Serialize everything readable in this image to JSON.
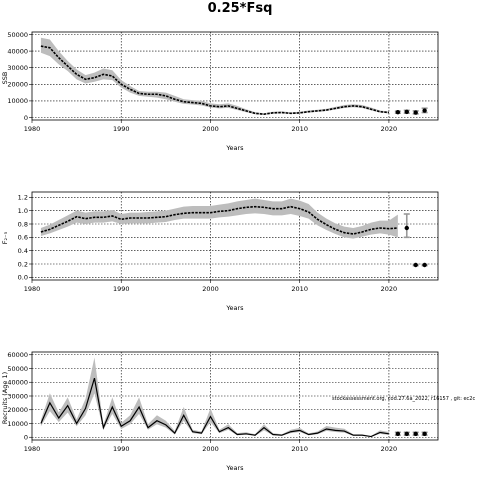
{
  "title": "0.25*Fsq",
  "annotation": "stockassessment.org, cod.27.6a_2022, r16157 , git: ec2c",
  "chart_data": [
    {
      "type": "line",
      "title": "",
      "xlabel": "Years",
      "ylabel": "SSB",
      "xlim": [
        1980,
        2025.5
      ],
      "ylim": [
        -1500,
        51500
      ],
      "xticks": [
        1980,
        1990,
        2000,
        2010,
        2020
      ],
      "yticks": [
        0,
        10000,
        20000,
        30000,
        40000,
        50000
      ],
      "grid": true,
      "x": [
        1981,
        1982,
        1983,
        1984,
        1985,
        1986,
        1987,
        1988,
        1989,
        1990,
        1991,
        1992,
        1993,
        1994,
        1995,
        1996,
        1997,
        1998,
        1999,
        2000,
        2001,
        2002,
        2003,
        2004,
        2005,
        2006,
        2007,
        2008,
        2009,
        2010,
        2011,
        2012,
        2013,
        2014,
        2015,
        2016,
        2017,
        2018,
        2019,
        2020
      ],
      "series": [
        {
          "values": [
            43000,
            42000,
            36000,
            31000,
            26000,
            23000,
            24000,
            26000,
            25000,
            20000,
            17000,
            14500,
            14000,
            14000,
            13000,
            11000,
            9500,
            9000,
            8500,
            7000,
            6500,
            7000,
            5500,
            4000,
            2500,
            2000,
            2800,
            3000,
            2500,
            2800,
            3500,
            4000,
            4500,
            5500,
            6500,
            7000,
            6500,
            5000,
            3500,
            3000
          ],
          "lower": [
            39000,
            37000,
            32000,
            28000,
            23000,
            20500,
            21500,
            23000,
            22500,
            18000,
            15000,
            13000,
            12500,
            12000,
            11000,
            9500,
            8200,
            7800,
            7200,
            6000,
            5500,
            5800,
            4500,
            3200,
            2000,
            1600,
            2300,
            2500,
            2100,
            2300,
            3000,
            3400,
            3900,
            4800,
            5700,
            6200,
            5700,
            4300,
            3000,
            2500
          ],
          "upper": [
            48000,
            47000,
            40000,
            34000,
            29000,
            25500,
            27000,
            29500,
            28500,
            22500,
            19000,
            16000,
            15500,
            15500,
            15000,
            13000,
            11000,
            10500,
            10000,
            8500,
            8000,
            8500,
            7000,
            5000,
            3200,
            2600,
            3500,
            3700,
            3100,
            3500,
            4200,
            4700,
            5300,
            6400,
            7500,
            8000,
            7500,
            6000,
            4200,
            3600
          ],
          "style": "dashed"
        }
      ],
      "forecast": {
        "x": [
          2021,
          2022,
          2023,
          2024
        ],
        "values": [
          3200,
          3400,
          3000,
          4200
        ],
        "lower": [
          2600,
          2600,
          2200,
          3000
        ],
        "upper": [
          3800,
          4300,
          4000,
          5600
        ]
      }
    },
    {
      "type": "line",
      "title": "",
      "xlabel": "Years",
      "ylabel": "F₂₋₅",
      "xlim": [
        1980,
        2025.5
      ],
      "ylim": [
        -0.04,
        1.28
      ],
      "xticks": [
        1980,
        1990,
        2000,
        2010,
        2020
      ],
      "yticks": [
        0.0,
        0.2,
        0.4,
        0.6,
        0.8,
        1.0,
        1.2
      ],
      "yticklabels": [
        "0.0",
        "0.2",
        "0.4",
        "0.6",
        "0.8",
        "1.0",
        "1.2"
      ],
      "grid": true,
      "x": [
        1981,
        1982,
        1983,
        1984,
        1985,
        1986,
        1987,
        1988,
        1989,
        1990,
        1991,
        1992,
        1993,
        1994,
        1995,
        1996,
        1997,
        1998,
        1999,
        2000,
        2001,
        2002,
        2003,
        2004,
        2005,
        2006,
        2007,
        2008,
        2009,
        2010,
        2011,
        2012,
        2013,
        2014,
        2015,
        2016,
        2017,
        2018,
        2019,
        2020,
        2021
      ],
      "series": [
        {
          "values": [
            0.68,
            0.72,
            0.78,
            0.84,
            0.91,
            0.88,
            0.9,
            0.9,
            0.92,
            0.87,
            0.89,
            0.89,
            0.89,
            0.9,
            0.91,
            0.94,
            0.96,
            0.97,
            0.97,
            0.97,
            0.99,
            1.0,
            1.03,
            1.05,
            1.06,
            1.05,
            1.03,
            1.03,
            1.06,
            1.03,
            0.98,
            0.87,
            0.79,
            0.72,
            0.67,
            0.65,
            0.68,
            0.72,
            0.74,
            0.73,
            0.74
          ],
          "lower": [
            0.62,
            0.66,
            0.71,
            0.76,
            0.82,
            0.8,
            0.82,
            0.82,
            0.84,
            0.8,
            0.81,
            0.81,
            0.81,
            0.82,
            0.83,
            0.86,
            0.88,
            0.88,
            0.88,
            0.88,
            0.9,
            0.91,
            0.93,
            0.95,
            0.96,
            0.95,
            0.93,
            0.93,
            0.95,
            0.92,
            0.88,
            0.78,
            0.71,
            0.65,
            0.6,
            0.58,
            0.61,
            0.64,
            0.66,
            0.64,
            0.6
          ],
          "upper": [
            0.74,
            0.79,
            0.86,
            0.93,
            1.0,
            0.97,
            0.99,
            0.99,
            1.01,
            0.95,
            0.97,
            0.97,
            0.98,
            0.99,
            1.0,
            1.03,
            1.06,
            1.07,
            1.07,
            1.07,
            1.09,
            1.11,
            1.14,
            1.16,
            1.18,
            1.16,
            1.14,
            1.14,
            1.18,
            1.15,
            1.1,
            0.97,
            0.88,
            0.81,
            0.76,
            0.74,
            0.77,
            0.82,
            0.85,
            0.85,
            0.94
          ],
          "style": "dashed"
        }
      ],
      "forecast": {
        "x": [
          2022,
          2023,
          2024
        ],
        "values": [
          0.74,
          0.185,
          0.185
        ],
        "lower": [
          0.6,
          0.175,
          0.175
        ],
        "upper": [
          0.95,
          0.195,
          0.195
        ]
      }
    },
    {
      "type": "line",
      "title": "",
      "xlabel": "Years",
      "ylabel": "Recruits (Age 1)",
      "xlim": [
        1980,
        2025.5
      ],
      "ylim": [
        -2000,
        62000
      ],
      "xticks": [
        1980,
        1990,
        2000,
        2010,
        2020
      ],
      "yticks": [
        0,
        10000,
        20000,
        30000,
        40000,
        50000,
        60000
      ],
      "grid": true,
      "x": [
        1981,
        1982,
        1983,
        1984,
        1985,
        1986,
        1987,
        1988,
        1989,
        1990,
        1991,
        1992,
        1993,
        1994,
        1995,
        1996,
        1997,
        1998,
        1999,
        2000,
        2001,
        2002,
        2003,
        2004,
        2005,
        2006,
        2007,
        2008,
        2009,
        2010,
        2011,
        2012,
        2013,
        2014,
        2015,
        2016,
        2017,
        2018,
        2019,
        2020
      ],
      "series": [
        {
          "values": [
            10000,
            25000,
            14000,
            23000,
            10000,
            21000,
            43000,
            7000,
            22000,
            8000,
            12000,
            22000,
            7000,
            12000,
            9000,
            3000,
            16000,
            4000,
            3000,
            15000,
            4000,
            7000,
            2000,
            2500,
            1500,
            7000,
            2000,
            1500,
            4000,
            5000,
            2000,
            3000,
            6000,
            5000,
            4500,
            1500,
            1500,
            500,
            3500,
            2500
          ],
          "lower": [
            8000,
            19000,
            11000,
            18000,
            8000,
            16000,
            32000,
            5500,
            17000,
            6000,
            9500,
            17000,
            5500,
            9500,
            7000,
            2000,
            12000,
            3000,
            2200,
            11000,
            3000,
            5500,
            1400,
            1800,
            1000,
            5000,
            1400,
            1000,
            3000,
            3800,
            1400,
            2200,
            4600,
            3800,
            3400,
            1000,
            1000,
            300,
            2500,
            1600
          ],
          "upper": [
            12500,
            32000,
            18000,
            29000,
            13000,
            28000,
            58000,
            9000,
            29000,
            10500,
            16000,
            29000,
            9500,
            16000,
            12000,
            4500,
            22000,
            5500,
            4200,
            21000,
            5500,
            9500,
            3000,
            3600,
            2200,
            9500,
            3000,
            2200,
            5500,
            6800,
            2800,
            4200,
            8200,
            7000,
            6200,
            2200,
            2200,
            900,
            5000,
            3800
          ],
          "style": "solid"
        }
      ],
      "forecast": {
        "x": [
          2021,
          2022,
          2023,
          2024
        ],
        "values": [
          2500,
          2500,
          2500,
          2500
        ],
        "lower": [
          1500,
          1500,
          1500,
          1500
        ],
        "upper": [
          3600,
          3600,
          3600,
          3600
        ]
      }
    }
  ]
}
